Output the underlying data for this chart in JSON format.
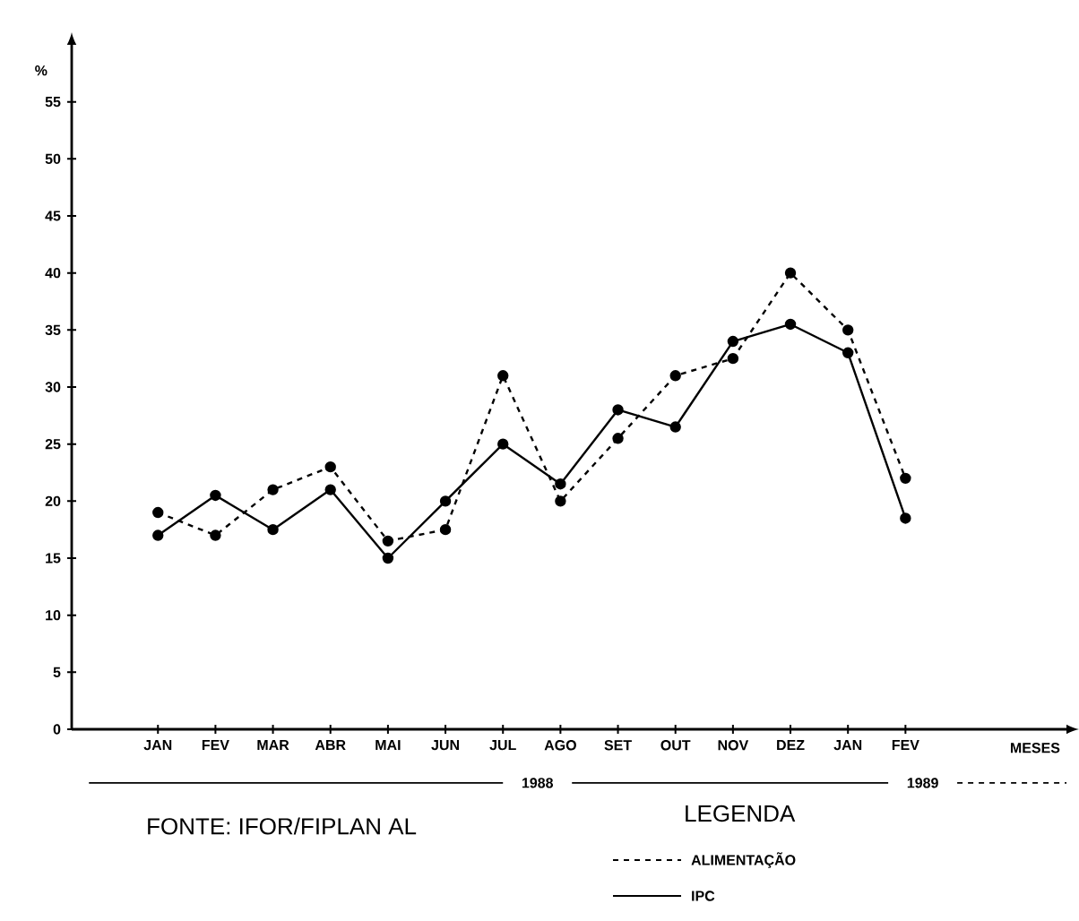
{
  "chart_data": {
    "type": "line",
    "ylabel": "%",
    "categories": [
      "JAN",
      "FEV",
      "MAR",
      "ABR",
      "MAI",
      "JUN",
      "JUL",
      "AGO",
      "SET",
      "OUT",
      "NOV",
      "DEZ",
      "JAN",
      "FEV"
    ],
    "series": [
      {
        "name": "ALIMENTAÇÃO",
        "color": "#000000",
        "line_style": "dashed",
        "values": [
          19,
          17,
          21,
          23,
          16.5,
          17.5,
          31,
          20,
          25.5,
          31,
          32.5,
          40,
          35,
          22
        ]
      },
      {
        "name": "IPC",
        "color": "#000000",
        "line_style": "solid",
        "values": [
          17,
          20.5,
          17.5,
          21,
          15,
          20,
          25,
          21.5,
          28,
          26.5,
          34,
          35.5,
          33,
          18.5
        ]
      }
    ],
    "ylim": [
      0,
      60
    ],
    "yticks": [
      0,
      5,
      10,
      15,
      20,
      25,
      30,
      35,
      40,
      45,
      50,
      55
    ],
    "marker": "circle",
    "grid": false,
    "legend": "bottom",
    "legend_title": "LEGENDA",
    "annotations": [
      "FONTE: IFOR/FIPLAN AL",
      "1988",
      "1989",
      "MESES"
    ]
  }
}
